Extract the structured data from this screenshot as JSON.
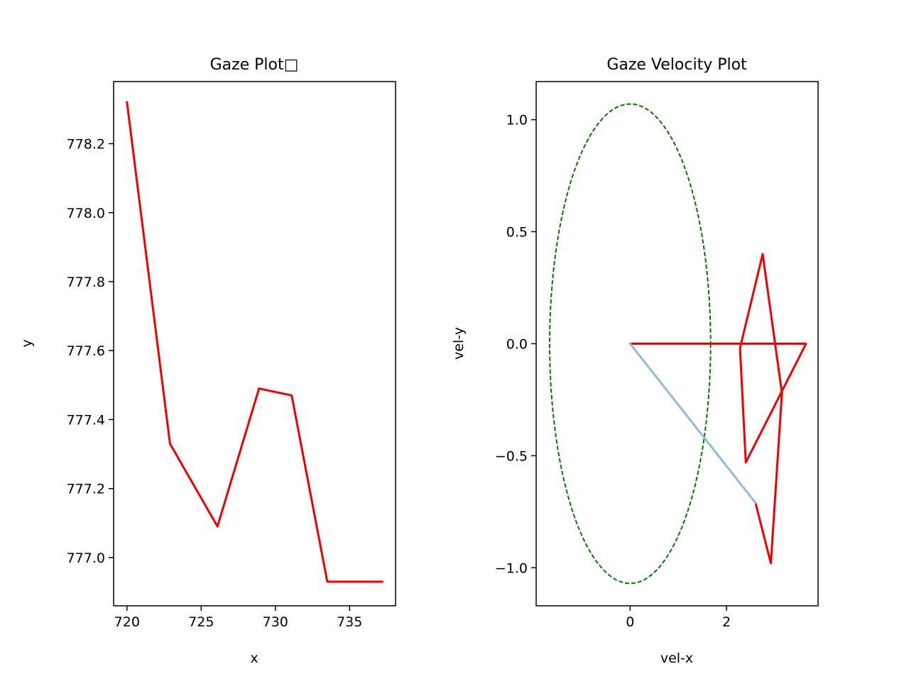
{
  "colors": {
    "trace": "#ee0000",
    "velocity_vector": "#8fbbd9",
    "threshold_ellipse": "#007700",
    "axes": "#000000",
    "background": "#ffffff"
  },
  "chart_data": [
    {
      "type": "line",
      "title": "Gaze Plot□",
      "xlabel": "x",
      "ylabel": "y",
      "xlim": [
        719.1,
        738.1
      ],
      "ylim": [
        776.86,
        778.38
      ],
      "xticks": [
        720,
        725,
        730,
        735
      ],
      "xtick_labels": [
        "720",
        "725",
        "730",
        "735"
      ],
      "yticks": [
        777.0,
        777.2,
        777.4,
        777.6,
        777.8,
        778.0,
        778.2
      ],
      "ytick_labels": [
        "777.0",
        "777.2",
        "777.4",
        "777.6",
        "777.8",
        "778.0",
        "778.2"
      ],
      "grid": false,
      "series": [
        {
          "color": "#ee0000",
          "x": [
            720.0,
            722.9,
            726.1,
            728.9,
            731.1,
            733.5,
            737.2
          ],
          "y": [
            778.32,
            777.33,
            777.09,
            777.49,
            777.47,
            776.93,
            776.93
          ]
        }
      ]
    },
    {
      "type": "line",
      "title": "Gaze Velocity Plot",
      "xlabel": "vel-x",
      "ylabel": "vel-y",
      "xlim": [
        -1.95,
        3.9
      ],
      "ylim": [
        -1.17,
        1.17
      ],
      "xticks": [
        0,
        2
      ],
      "xtick_labels": [
        "0",
        "2"
      ],
      "yticks": [
        -1.0,
        -0.5,
        0.0,
        0.5,
        1.0
      ],
      "ytick_labels": [
        "−1.0",
        "−0.5",
        "0.0",
        "0.5",
        "1.0"
      ],
      "grid": false,
      "series": [
        {
          "color": "#ee0000",
          "x": [
            0.0,
            3.65,
            2.4,
            2.28,
            2.75,
            3.15,
            2.92,
            2.6
          ],
          "y": [
            0.0,
            0.0,
            -0.53,
            -0.02,
            0.4,
            -0.22,
            -0.98,
            -0.71
          ]
        },
        {
          "color": "#8fbbd9",
          "x": [
            0.0,
            2.6
          ],
          "y": [
            0.0,
            -0.71
          ]
        }
      ],
      "ellipse": {
        "center": [
          0.0,
          0.0
        ],
        "rx": 1.67,
        "ry": 1.07,
        "color": "#007700",
        "style": "dashed"
      }
    }
  ]
}
